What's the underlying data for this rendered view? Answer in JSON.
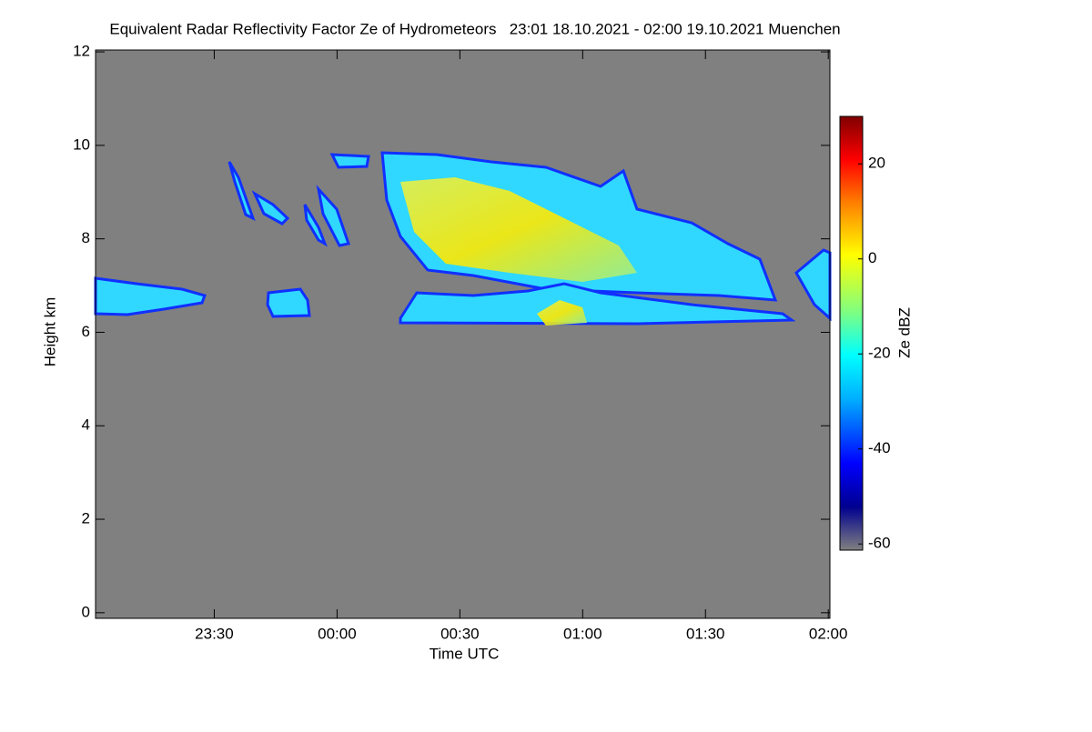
{
  "chart_data": {
    "type": "heatmap",
    "title": "Equivalent Radar Reflectivity Factor Ze of Hydrometeors   23:01 18.10.2021 - 02:00 19.10.2021 Muenchen",
    "x_label": "Time UTC",
    "y_label": "Height km",
    "colorbar_label": "Ze dBZ",
    "xlim": [
      1,
      180.4
    ],
    "xticks": [
      {
        "value": 30,
        "label": "23:30"
      },
      {
        "value": 60,
        "label": "00:00"
      },
      {
        "value": 90,
        "label": "00:30"
      },
      {
        "value": 120,
        "label": "01:00"
      },
      {
        "value": 150,
        "label": "01:30"
      },
      {
        "value": 180,
        "label": "02:00"
      }
    ],
    "ylim": [
      -0.12,
      12.04
    ],
    "yticks": [
      0,
      2,
      4,
      6,
      8,
      10,
      12
    ],
    "zlim": [
      -61.3,
      30
    ],
    "zticks": [
      -60,
      -40,
      -20,
      0,
      20
    ]
  }
}
